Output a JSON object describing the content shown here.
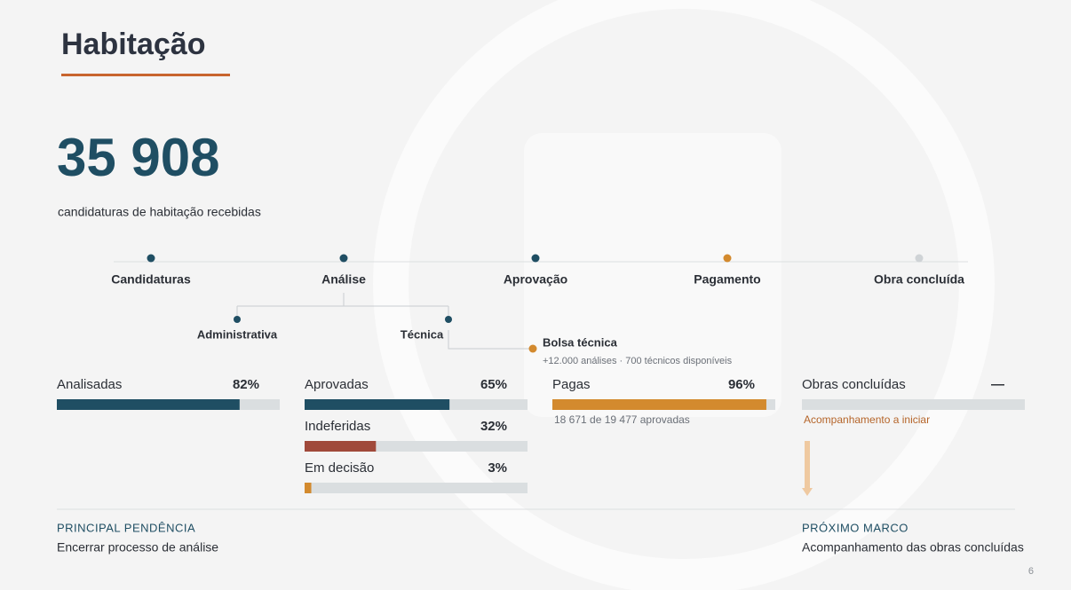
{
  "header": {
    "title": "Habitação"
  },
  "kpi": {
    "value": "35 908",
    "caption": "candidaturas de habitação recebidas"
  },
  "timeline": {
    "stages": [
      {
        "label": "Candidaturas",
        "color": "#1f4e63"
      },
      {
        "label": "Análise",
        "color": "#1f4e63"
      },
      {
        "label": "Aprovação",
        "color": "#1f4e63"
      },
      {
        "label": "Pagamento",
        "color": "#d38a2e"
      },
      {
        "label": "Obra concluída",
        "color": "#cfd3d6"
      }
    ],
    "substeps": [
      {
        "label": "Administrativa",
        "color": "#1f4e63"
      },
      {
        "label": "Técnica",
        "color": "#1f4e63"
      }
    ],
    "bolsa": {
      "label": "Bolsa técnica",
      "detail": "+12.000 análises · 700 técnicos disponíveis",
      "color": "#d38a2e"
    }
  },
  "scale": [
    0,
    100
  ],
  "columns": [
    {
      "bars": [
        {
          "label": "Analisadas",
          "value": 82,
          "value_label": "82%",
          "color": "#1f4e63"
        }
      ]
    },
    {
      "bars": [
        {
          "label": "Aprovadas",
          "value": 65,
          "value_label": "65%",
          "color": "#1f4e63"
        },
        {
          "label": "Indeferidas",
          "value": 32,
          "value_label": "32%",
          "color": "#a0493a"
        },
        {
          "label": "Em decisão",
          "value": 3,
          "value_label": "3%",
          "color": "#d38a2e"
        }
      ]
    },
    {
      "bars": [
        {
          "label": "Pagas",
          "value": 96,
          "value_label": "96%",
          "color": "#d38a2e"
        }
      ],
      "note": "18 671 de 19 477 aprovadas"
    },
    {
      "bars": [
        {
          "label": "Obras concluídas",
          "value": null,
          "value_label": "—",
          "color": "#cfd3d6"
        }
      ],
      "note": "Acompanhamento a iniciar"
    }
  ],
  "footer": {
    "left": {
      "heading": "PRINCIPAL PENDÊNCIA",
      "text": "Encerrar processo de análise"
    },
    "right": {
      "heading": "PRÓXIMO MARCO",
      "text": "Acompanhamento das obras concluídas"
    },
    "page": "6"
  }
}
